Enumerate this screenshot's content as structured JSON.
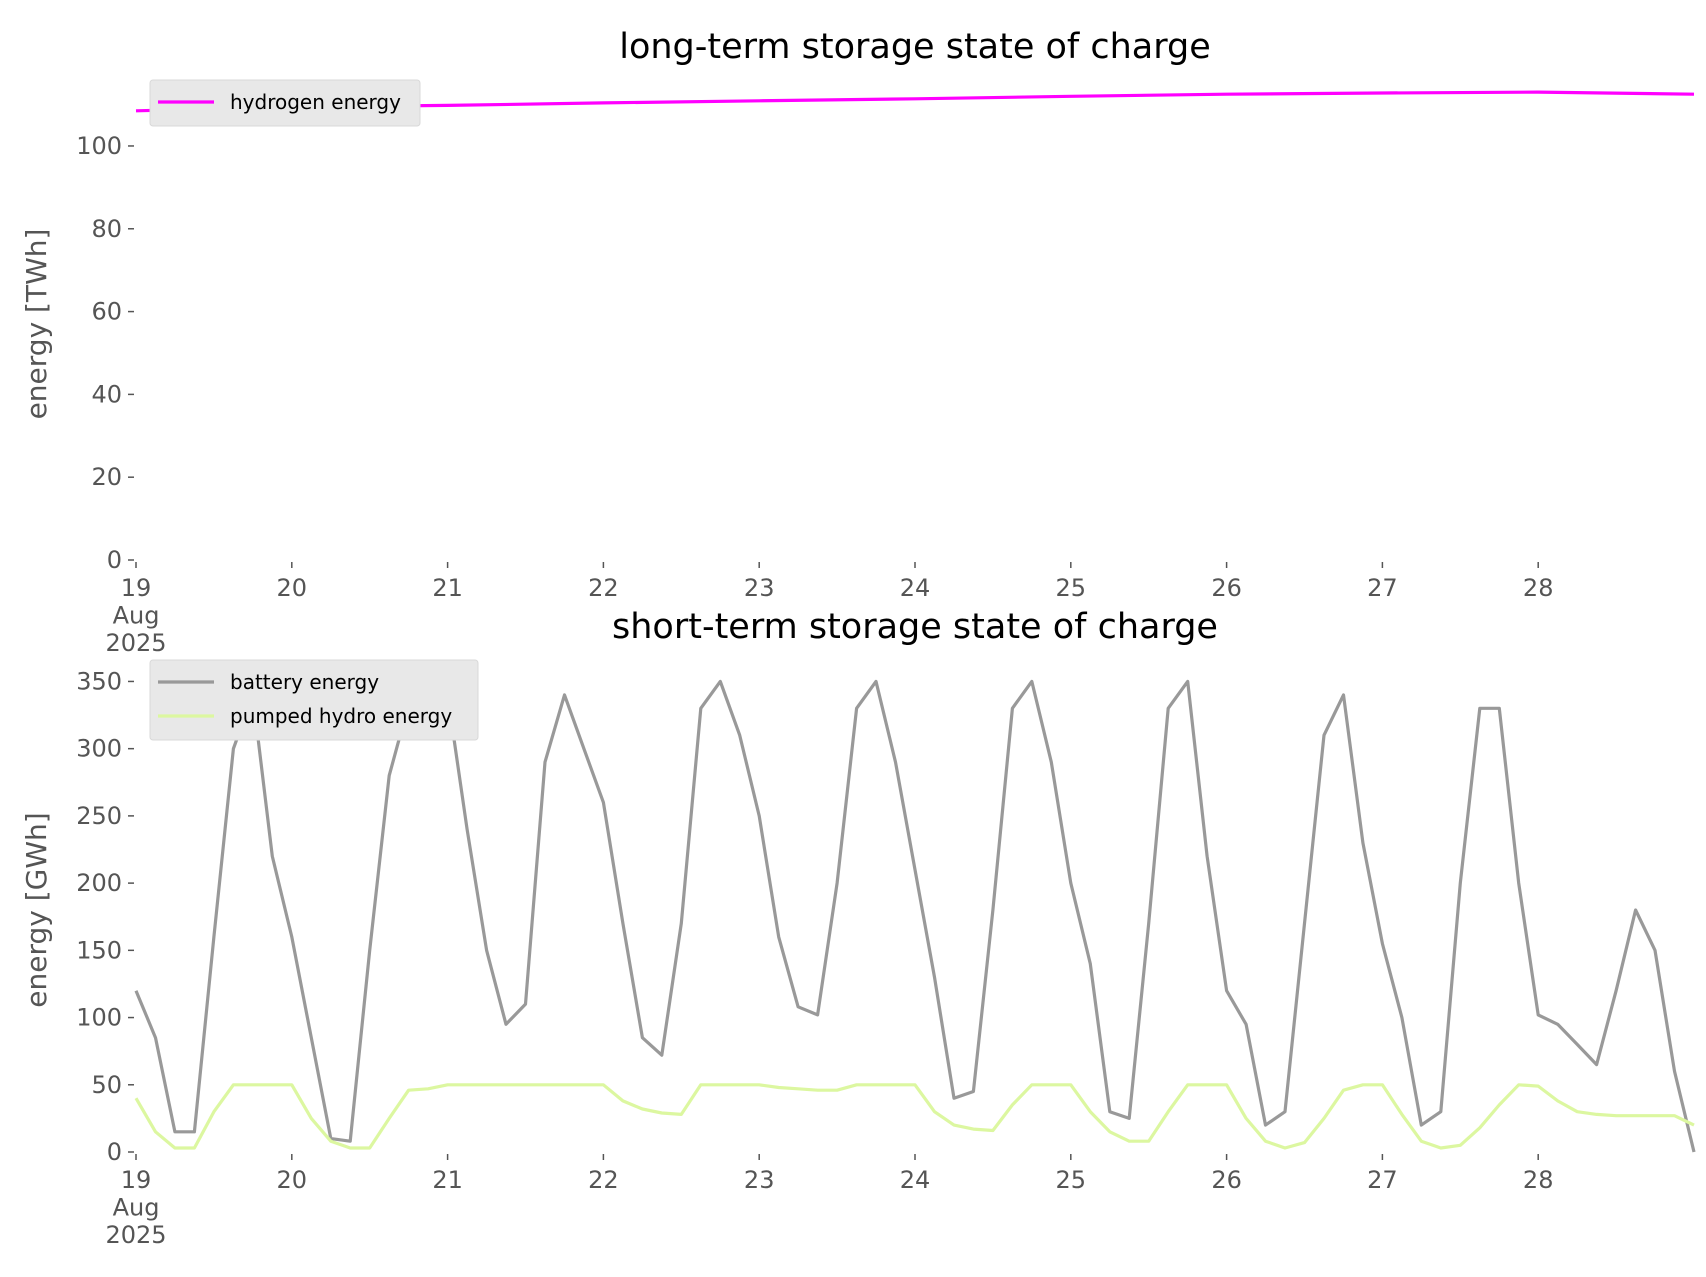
{
  "chart_data": [
    {
      "type": "line",
      "title": "long-term storage state of charge",
      "y_label": "energy [TWh]",
      "x": [
        19,
        20,
        21,
        22,
        23,
        24,
        25,
        26,
        27,
        28,
        29
      ],
      "series": [
        {
          "name": "hydrogen energy",
          "color": "#ff00ff",
          "values": [
            108.5,
            109.4,
            109.8,
            110.4,
            110.9,
            111.4,
            112,
            112.5,
            112.8,
            113,
            112.5
          ]
        }
      ],
      "xlim": [
        19,
        29
      ],
      "xticks": [
        {
          "value": 19,
          "label": "19\nAug\n2025"
        },
        20,
        21,
        22,
        23,
        24,
        25,
        26,
        27,
        28
      ],
      "ylim": [
        0,
        114
      ],
      "yticks": [
        0,
        20,
        40,
        60,
        80,
        100
      ],
      "legend": "upper left"
    },
    {
      "type": "line",
      "title": "short-term storage state of charge",
      "y_label": "energy [GWh]",
      "x": [
        19,
        19.125,
        19.25,
        19.375,
        19.5,
        19.625,
        19.75,
        19.875,
        20,
        20.125,
        20.25,
        20.375,
        20.5,
        20.625,
        20.75,
        20.875,
        21,
        21.125,
        21.25,
        21.375,
        21.5,
        21.625,
        21.75,
        21.875,
        22,
        22.125,
        22.25,
        22.375,
        22.5,
        22.625,
        22.75,
        22.875,
        23,
        23.125,
        23.25,
        23.375,
        23.5,
        23.625,
        23.75,
        23.875,
        24,
        24.125,
        24.25,
        24.375,
        24.5,
        24.625,
        24.75,
        24.875,
        25,
        25.125,
        25.25,
        25.375,
        25.5,
        25.625,
        25.75,
        25.875,
        26,
        26.125,
        26.25,
        26.375,
        26.5,
        26.625,
        26.75,
        26.875,
        27,
        27.125,
        27.25,
        27.375,
        27.5,
        27.625,
        27.75,
        27.875,
        28,
        28.125,
        28.25,
        28.375,
        28.5,
        28.625,
        28.75,
        28.875,
        29
      ],
      "series": [
        {
          "name": "battery energy",
          "color": "#999999",
          "values": [
            120,
            85,
            15,
            15,
            160,
            300,
            340,
            220,
            160,
            85,
            10,
            8,
            150,
            280,
            333,
            340,
            340,
            240,
            150,
            95,
            110,
            290,
            340,
            300,
            260,
            170,
            85,
            72,
            170,
            330,
            350,
            310,
            250,
            160,
            108,
            102,
            200,
            330,
            350,
            290,
            210,
            130,
            40,
            45,
            180,
            330,
            350,
            290,
            200,
            140,
            30,
            25,
            170,
            330,
            350,
            220,
            120,
            95,
            20,
            30,
            170,
            310,
            340,
            230,
            155,
            100,
            20,
            30,
            200,
            330,
            330,
            200,
            102,
            95,
            80,
            65,
            120,
            180,
            150,
            60,
            0
          ]
        },
        {
          "name": "pumped hydro energy",
          "color": "#dcf7a0",
          "values": [
            40,
            15,
            3,
            3,
            30,
            50,
            50,
            50,
            50,
            25,
            8,
            3,
            3,
            25,
            46,
            47,
            50,
            50,
            50,
            50,
            50,
            50,
            50,
            50,
            50,
            38,
            32,
            29,
            28,
            50,
            50,
            50,
            50,
            48,
            47,
            46,
            46,
            50,
            50,
            50,
            50,
            30,
            20,
            17,
            16,
            35,
            50,
            50,
            50,
            30,
            15,
            8,
            8,
            30,
            50,
            50,
            50,
            25,
            8,
            3,
            7,
            25,
            46,
            50,
            50,
            28,
            8,
            3,
            5,
            18,
            35,
            50,
            49,
            38,
            30,
            28,
            27,
            27,
            27,
            27,
            20
          ]
        }
      ],
      "xlim": [
        19,
        29
      ],
      "xticks": [
        {
          "value": 19,
          "label": "19\nAug\n2025"
        },
        20,
        21,
        22,
        23,
        24,
        25,
        26,
        27,
        28
      ],
      "ylim": [
        0,
        360
      ],
      "yticks": [
        0,
        50,
        100,
        150,
        200,
        250,
        300,
        350
      ],
      "legend": "upper left"
    }
  ]
}
